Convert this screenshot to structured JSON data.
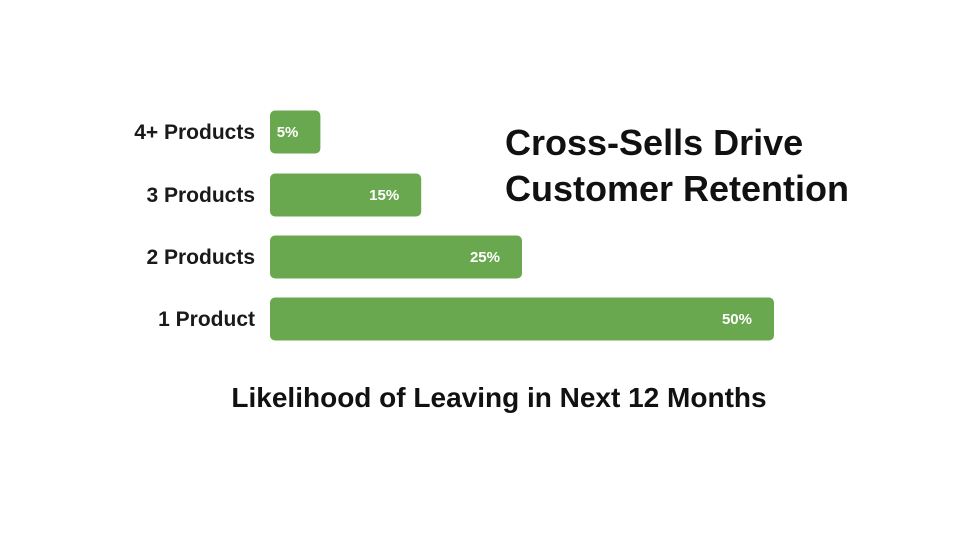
{
  "chart_data": {
    "type": "bar",
    "orientation": "horizontal",
    "title_lines": [
      "Cross-Sells Drive",
      "Customer Retention"
    ],
    "xlabel": "Likelihood of Leaving in Next 12 Months",
    "ylabel": "",
    "categories": [
      "4+ Products",
      "3 Products",
      "2 Products",
      "1 Product"
    ],
    "values": [
      5,
      15,
      25,
      50
    ],
    "value_labels": [
      "5%",
      "15%",
      "25%",
      "50%"
    ],
    "xlim": [
      0,
      50
    ],
    "grid": false,
    "legend": "none",
    "bar_color": "#6aa84f",
    "label_color": "#ffffff"
  }
}
